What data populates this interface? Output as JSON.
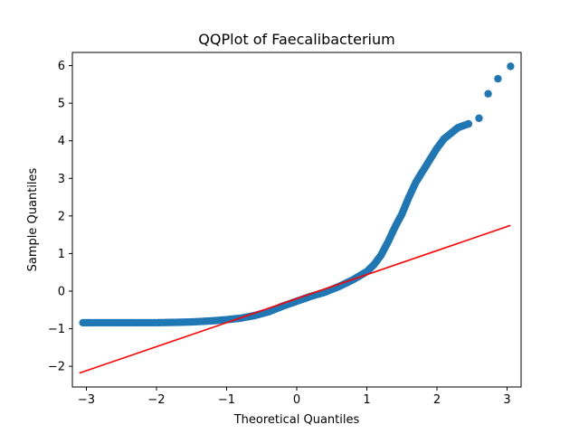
{
  "chart_data": {
    "type": "scatter",
    "title": "QQPlot of Faecalibacterium",
    "xlabel": "Theoretical Quantiles",
    "ylabel": "Sample Quantiles",
    "xlim": [
      -3.2,
      3.2
    ],
    "ylim": [
      -2.55,
      6.35
    ],
    "xticks": [
      -3,
      -2,
      -1,
      0,
      1,
      2,
      3
    ],
    "yticks": [
      -2,
      -1,
      0,
      1,
      2,
      3,
      4,
      5,
      6
    ],
    "xtick_labels": [
      "−3",
      "−2",
      "−1",
      "0",
      "1",
      "2",
      "3"
    ],
    "ytick_labels": [
      "−2",
      "−1",
      "0",
      "1",
      "2",
      "3",
      "4",
      "5",
      "6"
    ],
    "grid": false,
    "colors": {
      "points": "#1f77b4",
      "line": "#ff0000",
      "axes": "#000000"
    },
    "series": [
      {
        "kind": "points",
        "curve": [
          [
            -3.05,
            -0.84
          ],
          [
            -2.82,
            -0.84
          ],
          [
            -2.65,
            -0.84
          ],
          [
            -2.3,
            -0.84
          ],
          [
            -2.0,
            -0.84
          ],
          [
            -1.7,
            -0.83
          ],
          [
            -1.5,
            -0.82
          ],
          [
            -1.2,
            -0.79
          ],
          [
            -1.0,
            -0.76
          ],
          [
            -0.8,
            -0.72
          ],
          [
            -0.6,
            -0.65
          ],
          [
            -0.4,
            -0.55
          ],
          [
            -0.2,
            -0.4
          ],
          [
            0.0,
            -0.27
          ],
          [
            0.2,
            -0.14
          ],
          [
            0.4,
            -0.03
          ],
          [
            0.6,
            0.12
          ],
          [
            0.8,
            0.3
          ],
          [
            1.0,
            0.52
          ],
          [
            1.1,
            0.7
          ],
          [
            1.2,
            0.95
          ],
          [
            1.3,
            1.3
          ],
          [
            1.4,
            1.7
          ],
          [
            1.5,
            2.05
          ],
          [
            1.6,
            2.5
          ],
          [
            1.7,
            2.9
          ],
          [
            1.8,
            3.2
          ],
          [
            1.9,
            3.5
          ],
          [
            2.0,
            3.8
          ],
          [
            2.1,
            4.05
          ],
          [
            2.2,
            4.2
          ],
          [
            2.3,
            4.35
          ],
          [
            2.45,
            4.45
          ]
        ],
        "outliers": [
          [
            2.6,
            4.6
          ],
          [
            2.73,
            5.25
          ],
          [
            2.87,
            5.65
          ],
          [
            3.05,
            5.98
          ]
        ]
      },
      {
        "kind": "reference-line",
        "start": [
          -3.1,
          -2.18
        ],
        "end": [
          3.05,
          1.75
        ]
      }
    ]
  }
}
